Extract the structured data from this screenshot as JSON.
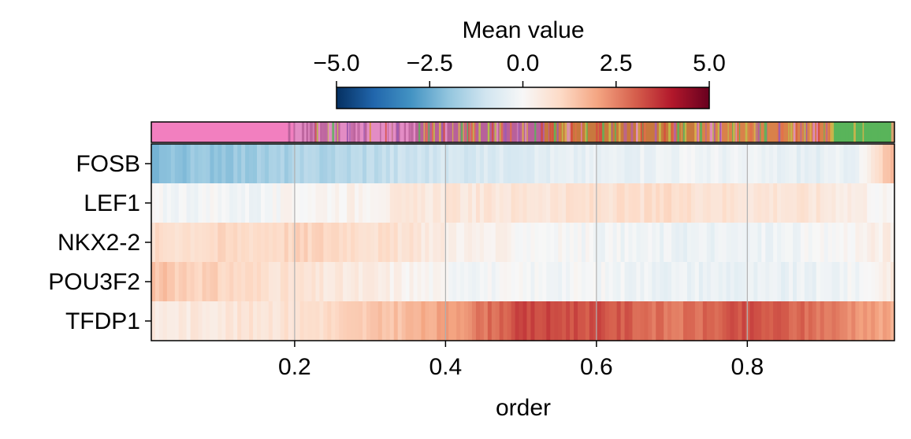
{
  "chart_data": {
    "type": "heatmap",
    "title": "",
    "xlabel": "order",
    "ylabel": "",
    "xlim": [
      0.01,
      0.995
    ],
    "x_ticks": [
      0.2,
      0.4,
      0.6,
      0.8
    ],
    "x_tick_labels": [
      "0.2",
      "0.4",
      "0.6",
      "0.8"
    ],
    "grid": true,
    "rows": [
      "FOSB",
      "LEF1",
      "NKX2-2",
      "POU3F2",
      "TFDP1"
    ],
    "colorbar": {
      "title": "Mean value",
      "range": [
        -5.0,
        5.0
      ],
      "ticks": [
        -5.0,
        -2.5,
        0.0,
        2.5,
        5.0
      ],
      "tick_labels": [
        "−5.0",
        "−2.5",
        "0.0",
        "2.5",
        "5.0"
      ],
      "colormap": "RdBu_r",
      "position": "top"
    },
    "annotation_bar": {
      "description": "cell-type colour strip above the heatmap",
      "segments": [
        {
          "x0": 0.01,
          "x1": 0.2,
          "color": "#f27fbf"
        },
        {
          "x0": 0.2,
          "x1": 0.36,
          "color": "#e38cc4"
        },
        {
          "x0": 0.36,
          "x1": 0.53,
          "color": "#b8609a"
        },
        {
          "x0": 0.53,
          "x1": 0.73,
          "color": "#c8783e"
        },
        {
          "x0": 0.73,
          "x1": 0.91,
          "color": "#d9814a"
        },
        {
          "x0": 0.91,
          "x1": 0.99,
          "color": "#59b45a"
        },
        {
          "x0": 0.99,
          "x1": 0.995,
          "color": "#d7a070"
        }
      ]
    },
    "x_knots": [
      0.01,
      0.05,
      0.1,
      0.15,
      0.2,
      0.25,
      0.3,
      0.35,
      0.4,
      0.45,
      0.5,
      0.55,
      0.6,
      0.65,
      0.7,
      0.75,
      0.8,
      0.85,
      0.9,
      0.95,
      0.995
    ],
    "series": [
      {
        "name": "FOSB",
        "values": [
          -2.2,
          -2.0,
          -1.9,
          -1.8,
          -1.6,
          -1.5,
          -1.3,
          -1.1,
          -0.9,
          -0.8,
          -0.6,
          -0.5,
          -0.4,
          -0.3,
          -0.2,
          -0.2,
          -0.3,
          -0.4,
          -0.5,
          -0.2,
          1.8
        ]
      },
      {
        "name": "LEF1",
        "values": [
          -0.1,
          -0.1,
          -0.1,
          -0.2,
          0.1,
          0.2,
          0.3,
          0.5,
          0.6,
          0.6,
          0.7,
          0.7,
          0.8,
          0.8,
          0.9,
          0.8,
          0.7,
          0.7,
          0.6,
          0.4,
          -0.1
        ]
      },
      {
        "name": "NKX2-2",
        "values": [
          0.9,
          0.9,
          1.0,
          1.0,
          1.1,
          1.1,
          0.9,
          0.7,
          0.4,
          0.2,
          0.1,
          0.0,
          -0.1,
          -0.2,
          -0.3,
          -0.3,
          -0.3,
          -0.2,
          -0.1,
          0.2,
          0.4
        ]
      },
      {
        "name": "POU3F2",
        "values": [
          1.5,
          1.3,
          1.1,
          0.9,
          0.7,
          0.5,
          0.4,
          0.2,
          0.0,
          -0.1,
          -0.1,
          -0.1,
          -0.1,
          -0.2,
          -0.3,
          -0.3,
          -0.4,
          -0.4,
          -0.3,
          -0.1,
          0.6
        ]
      },
      {
        "name": "TFDP1",
        "values": [
          0.4,
          0.5,
          0.6,
          0.7,
          0.8,
          1.0,
          1.3,
          1.6,
          2.0,
          2.7,
          3.3,
          3.3,
          3.2,
          3.0,
          2.6,
          2.9,
          3.2,
          3.0,
          2.7,
          2.3,
          1.8
        ]
      }
    ]
  }
}
